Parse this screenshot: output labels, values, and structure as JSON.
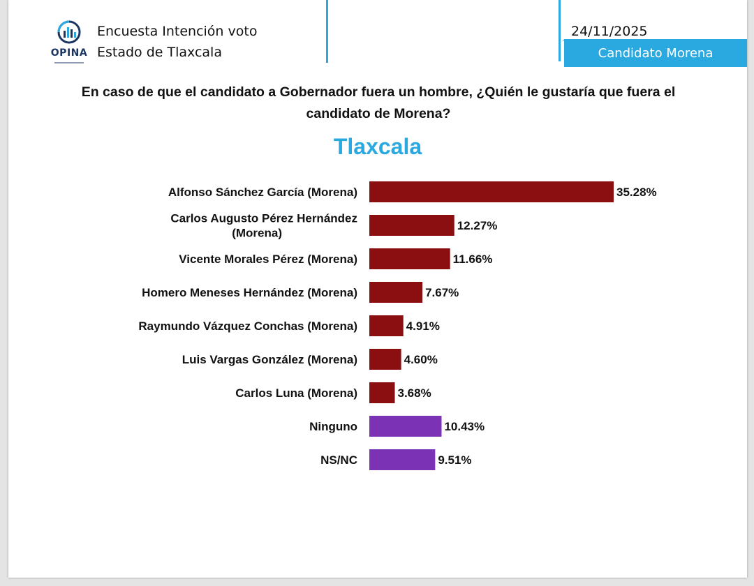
{
  "header": {
    "logo_text": "OPINA",
    "survey_title": "Encuesta Intención voto",
    "survey_state": "Estado de Tlaxcala",
    "date": "24/11/2025",
    "badge": "Candidato Morena"
  },
  "question": "En caso de que el candidato a Gobernador fuera un hombre, ¿Quién le gustaría que fuera el candidato de Morena?",
  "colors": {
    "accent": "#2aa9e0",
    "morena_bar": "#8b0f10",
    "other_bar": "#7b32b5"
  },
  "chart_data": {
    "type": "bar",
    "orientation": "horizontal",
    "title": "Tlaxcala",
    "categories": [
      [
        "Alfonso Sánchez García (Morena)"
      ],
      [
        "Carlos Augusto Pérez Hernández",
        "(Morena)"
      ],
      [
        "Vicente Morales Pérez (Morena)"
      ],
      [
        "Homero Meneses Hernández (Morena)"
      ],
      [
        "Raymundo Vázquez Conchas (Morena)"
      ],
      [
        "Luis Vargas González (Morena)"
      ],
      [
        "Carlos Luna (Morena)"
      ],
      [
        "Ninguno"
      ],
      [
        "NS/NC"
      ]
    ],
    "values": [
      35.28,
      12.27,
      11.66,
      7.67,
      4.91,
      4.6,
      3.68,
      10.43,
      9.51
    ],
    "value_labels": [
      "35.28%",
      "12.27%",
      "11.66%",
      "7.67%",
      "4.91%",
      "4.60%",
      "3.68%",
      "10.43%",
      "9.51%"
    ],
    "bar_groups": [
      "morena",
      "morena",
      "morena",
      "morena",
      "morena",
      "morena",
      "morena",
      "other",
      "other"
    ],
    "xlim": [
      0,
      35.28
    ],
    "grid": false,
    "legend": false
  }
}
